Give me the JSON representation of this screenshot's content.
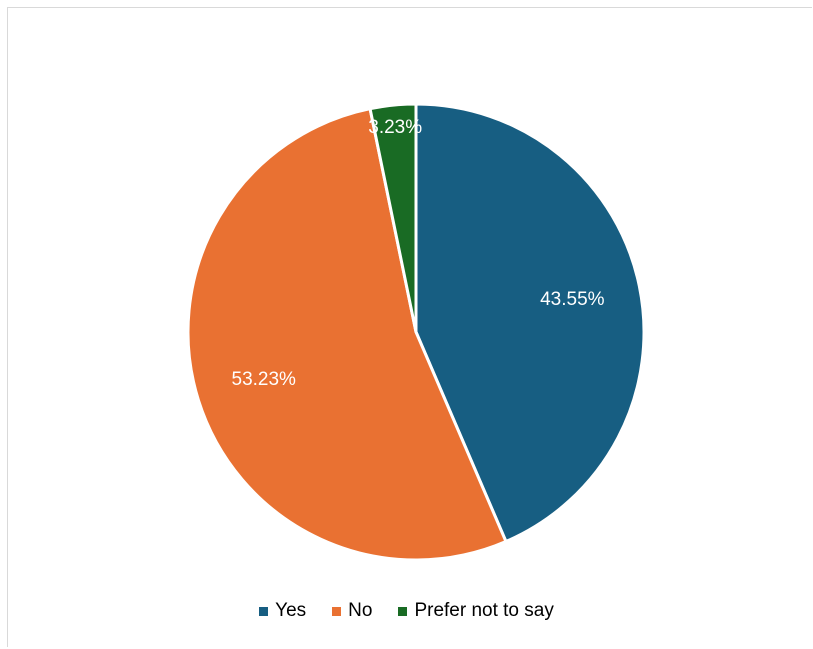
{
  "chart_data": {
    "type": "pie",
    "categories": [
      "Yes",
      "No",
      "Prefer not to say"
    ],
    "values": [
      43.55,
      53.23,
      3.23
    ],
    "data_labels": [
      "43.55%",
      "53.23%",
      "3.23%"
    ],
    "colors": [
      "#175e82",
      "#e97132",
      "#196b24"
    ],
    "legend_position": "bottom",
    "start_angle": "12 o'clock, clockwise"
  }
}
